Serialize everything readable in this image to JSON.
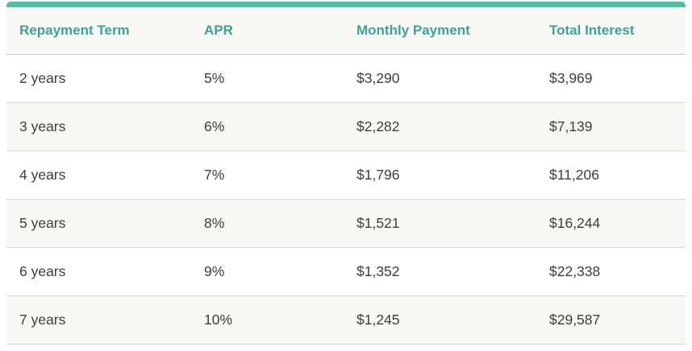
{
  "colors": {
    "accent": "#56bba3",
    "header_text": "#3fa48d",
    "body_text": "#3d3d3d",
    "stripe_bg": "#f7f7f6",
    "row_separator": "#dadada",
    "header_separator": "#c9c9c9",
    "outer_border": "#d5d5d5"
  },
  "table": {
    "columns": [
      "Repayment Term",
      "APR",
      "Monthly Payment",
      "Total Interest"
    ],
    "rows": [
      {
        "term": "2 years",
        "apr": "5%",
        "monthly_payment": "$3,290",
        "total_interest": "$3,969"
      },
      {
        "term": "3 years",
        "apr": "6%",
        "monthly_payment": "$2,282",
        "total_interest": "$7,139"
      },
      {
        "term": "4 years",
        "apr": "7%",
        "monthly_payment": "$1,796",
        "total_interest": "$11,206"
      },
      {
        "term": "5 years",
        "apr": "8%",
        "monthly_payment": "$1,521",
        "total_interest": "$16,244"
      },
      {
        "term": "6 years",
        "apr": "9%",
        "monthly_payment": "$1,352",
        "total_interest": "$22,338"
      },
      {
        "term": "7 years",
        "apr": "10%",
        "monthly_payment": "$1,245",
        "total_interest": "$29,587"
      }
    ]
  }
}
